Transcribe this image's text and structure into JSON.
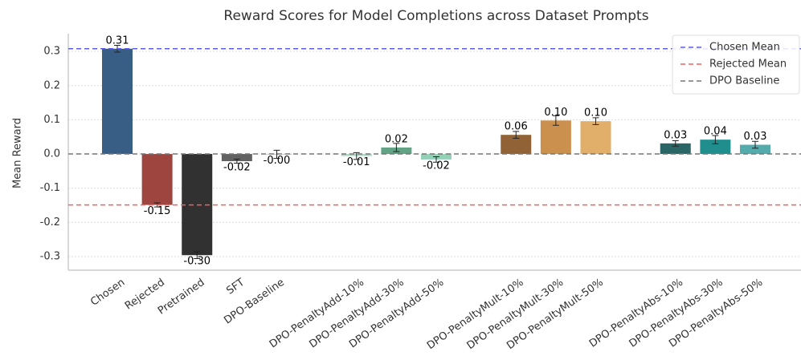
{
  "chart_data": {
    "type": "bar",
    "title": "Reward Scores for Model Completions across Dataset Prompts",
    "ylabel": "Mean Reward",
    "categories": [
      "Chosen",
      "Rejected",
      "Pretrained",
      "SFT",
      "DPO-Baseline",
      null,
      "DPO-PenaltyAdd-10%",
      "DPO-PenaltyAdd-30%",
      "DPO-PenaltyAdd-50%",
      null,
      "DPO-PenaltyMult-10%",
      "DPO-PenaltyMult-30%",
      "DPO-PenaltyMult-50%",
      null,
      "DPO-PenaltyAbs-10%",
      "DPO-PenaltyAbs-30%",
      "DPO-PenaltyAbs-50%"
    ],
    "values": [
      0.308,
      -0.149,
      -0.296,
      -0.021,
      -0.001,
      null,
      -0.006,
      0.019,
      -0.016,
      null,
      0.056,
      0.098,
      0.096,
      null,
      0.031,
      0.042,
      0.027
    ],
    "value_labels": [
      "0.31",
      "-0.15",
      "-0.30",
      "-0.02",
      "-0.00",
      null,
      "-0.01",
      "0.02",
      "-0.02",
      null,
      "0.06",
      "0.10",
      "0.10",
      null,
      "0.03",
      "0.04",
      "0.03"
    ],
    "errors": [
      0.01,
      0.006,
      0.01,
      0.006,
      0.012,
      null,
      0.01,
      0.012,
      0.008,
      null,
      0.01,
      0.014,
      0.01,
      null,
      0.008,
      0.012,
      0.01
    ],
    "colors": [
      "#2e5580",
      "#9a3b36",
      "#262626",
      "#5a5a5a",
      "#8a8a8a",
      null,
      "#a8d5c0",
      "#5a9e80",
      "#8dcfb3",
      null,
      "#8b5a2b",
      "#c98a45",
      "#e0ab62",
      null,
      "#1f5e5e",
      "#158888",
      "#4aa6a6"
    ],
    "reference_lines": [
      {
        "name": "Chosen Mean",
        "value": 0.308,
        "color": "#5b5bf0"
      },
      {
        "name": "Rejected Mean",
        "value": -0.149,
        "color": "#f06060"
      },
      {
        "name": "DPO Baseline",
        "value": 0,
        "color": "#777777"
      }
    ],
    "ylim": [
      -0.34,
      0.352
    ],
    "yticks": [
      -0.3,
      -0.2,
      -0.1,
      {
        "value": 0,
        "label": "0.0"
      },
      0.1,
      0.2,
      0.3
    ],
    "grid": true,
    "legend": "upper right"
  }
}
